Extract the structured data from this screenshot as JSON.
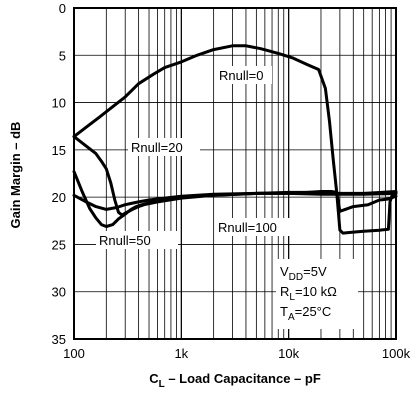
{
  "chart_data": {
    "type": "line",
    "xscale": "log",
    "xlim": [
      100,
      100000
    ],
    "ylim": [
      0,
      35
    ],
    "y_inverted": true,
    "grid": true,
    "xlabel": {
      "pre": "C",
      "sub": "L",
      "post": " – Load Capacitance – pF"
    },
    "ylabel": "Gain Margin – dB",
    "xticks": [
      {
        "value": 100,
        "label": "100"
      },
      {
        "value": 1000,
        "label": "1k"
      },
      {
        "value": 10000,
        "label": "10k"
      },
      {
        "value": 100000,
        "label": "100k"
      }
    ],
    "yticks": [
      {
        "value": 0,
        "label": "0"
      },
      {
        "value": 5,
        "label": "5"
      },
      {
        "value": 10,
        "label": "10"
      },
      {
        "value": 15,
        "label": "15"
      },
      {
        "value": 20,
        "label": "20"
      },
      {
        "value": 25,
        "label": "25"
      },
      {
        "value": 30,
        "label": "30"
      },
      {
        "value": 35,
        "label": "35"
      }
    ],
    "series": [
      {
        "name": "Rnull=0",
        "x": [
          100,
          130,
          170,
          220,
          300,
          400,
          550,
          700,
          1000,
          1400,
          2000,
          3000,
          4000,
          5500,
          8000,
          11000,
          15000,
          19000,
          22000,
          24000,
          26000,
          28000,
          30000,
          40000,
          55000,
          70000,
          85000,
          100000
        ],
        "y": [
          13.6,
          12.6,
          11.6,
          10.6,
          9.4,
          8.0,
          7.0,
          6.3,
          5.7,
          5.0,
          4.4,
          4.0,
          4.0,
          4.3,
          4.8,
          5.3,
          6.0,
          6.5,
          8.5,
          12,
          16,
          19.5,
          21.5,
          21.0,
          20.8,
          20.3,
          20.2,
          19.9
        ]
      },
      {
        "name": "Rnull=20",
        "x": [
          100,
          130,
          160,
          180,
          200,
          220,
          240,
          260,
          280,
          300,
          350,
          400,
          450,
          600,
          1000,
          2000,
          5000,
          10000,
          15000,
          20000,
          25000,
          28000,
          30000,
          32000,
          40000,
          50000,
          70000,
          85000,
          88000,
          92000,
          100000
        ],
        "y": [
          13.6,
          14.6,
          15.4,
          16.2,
          17.0,
          18.5,
          20.3,
          21.6,
          21.9,
          21.7,
          21.3,
          21.0,
          20.8,
          20.5,
          20.1,
          19.8,
          19.6,
          19.6,
          19.5,
          19.4,
          19.4,
          19.5,
          23.5,
          23.8,
          23.7,
          23.6,
          23.5,
          23.4,
          20.5,
          19.8,
          19.5
        ]
      },
      {
        "name": "Rnull=50",
        "x": [
          100,
          120,
          140,
          160,
          180,
          200,
          230,
          260,
          300,
          340,
          380,
          430,
          500,
          700,
          1000,
          2000,
          5000,
          10000,
          20000,
          30000,
          50000,
          100000
        ],
        "y": [
          17.3,
          19.5,
          21.2,
          22.2,
          22.9,
          23.1,
          22.9,
          22.3,
          21.8,
          21.3,
          21.0,
          20.8,
          20.6,
          20.2,
          20.0,
          19.8,
          19.6,
          19.5,
          19.5,
          19.6,
          19.6,
          19.4
        ]
      },
      {
        "name": "Rnull=100",
        "x": [
          100,
          130,
          160,
          200,
          250,
          300,
          400,
          500,
          700,
          1000,
          2000,
          5000,
          10000,
          20000,
          30000,
          50000,
          100000
        ],
        "y": [
          19.8,
          20.5,
          21.0,
          21.3,
          21.1,
          20.8,
          20.5,
          20.3,
          20.1,
          19.9,
          19.7,
          19.6,
          19.6,
          19.7,
          19.7,
          19.7,
          19.6
        ]
      }
    ],
    "annotations": {
      "rnull0": "Rnull=0",
      "rnull20": "Rnull=20",
      "rnull50": "Rnull=50",
      "rnull100": "Rnull=100",
      "vdd": {
        "pre": "V",
        "sub": "DD",
        "post": "=5V"
      },
      "rl": {
        "pre": "R",
        "sub": "L",
        "post": "=10 kΩ"
      },
      "ta": {
        "pre": "T",
        "sub": "A",
        "post": "=25°C"
      }
    }
  }
}
